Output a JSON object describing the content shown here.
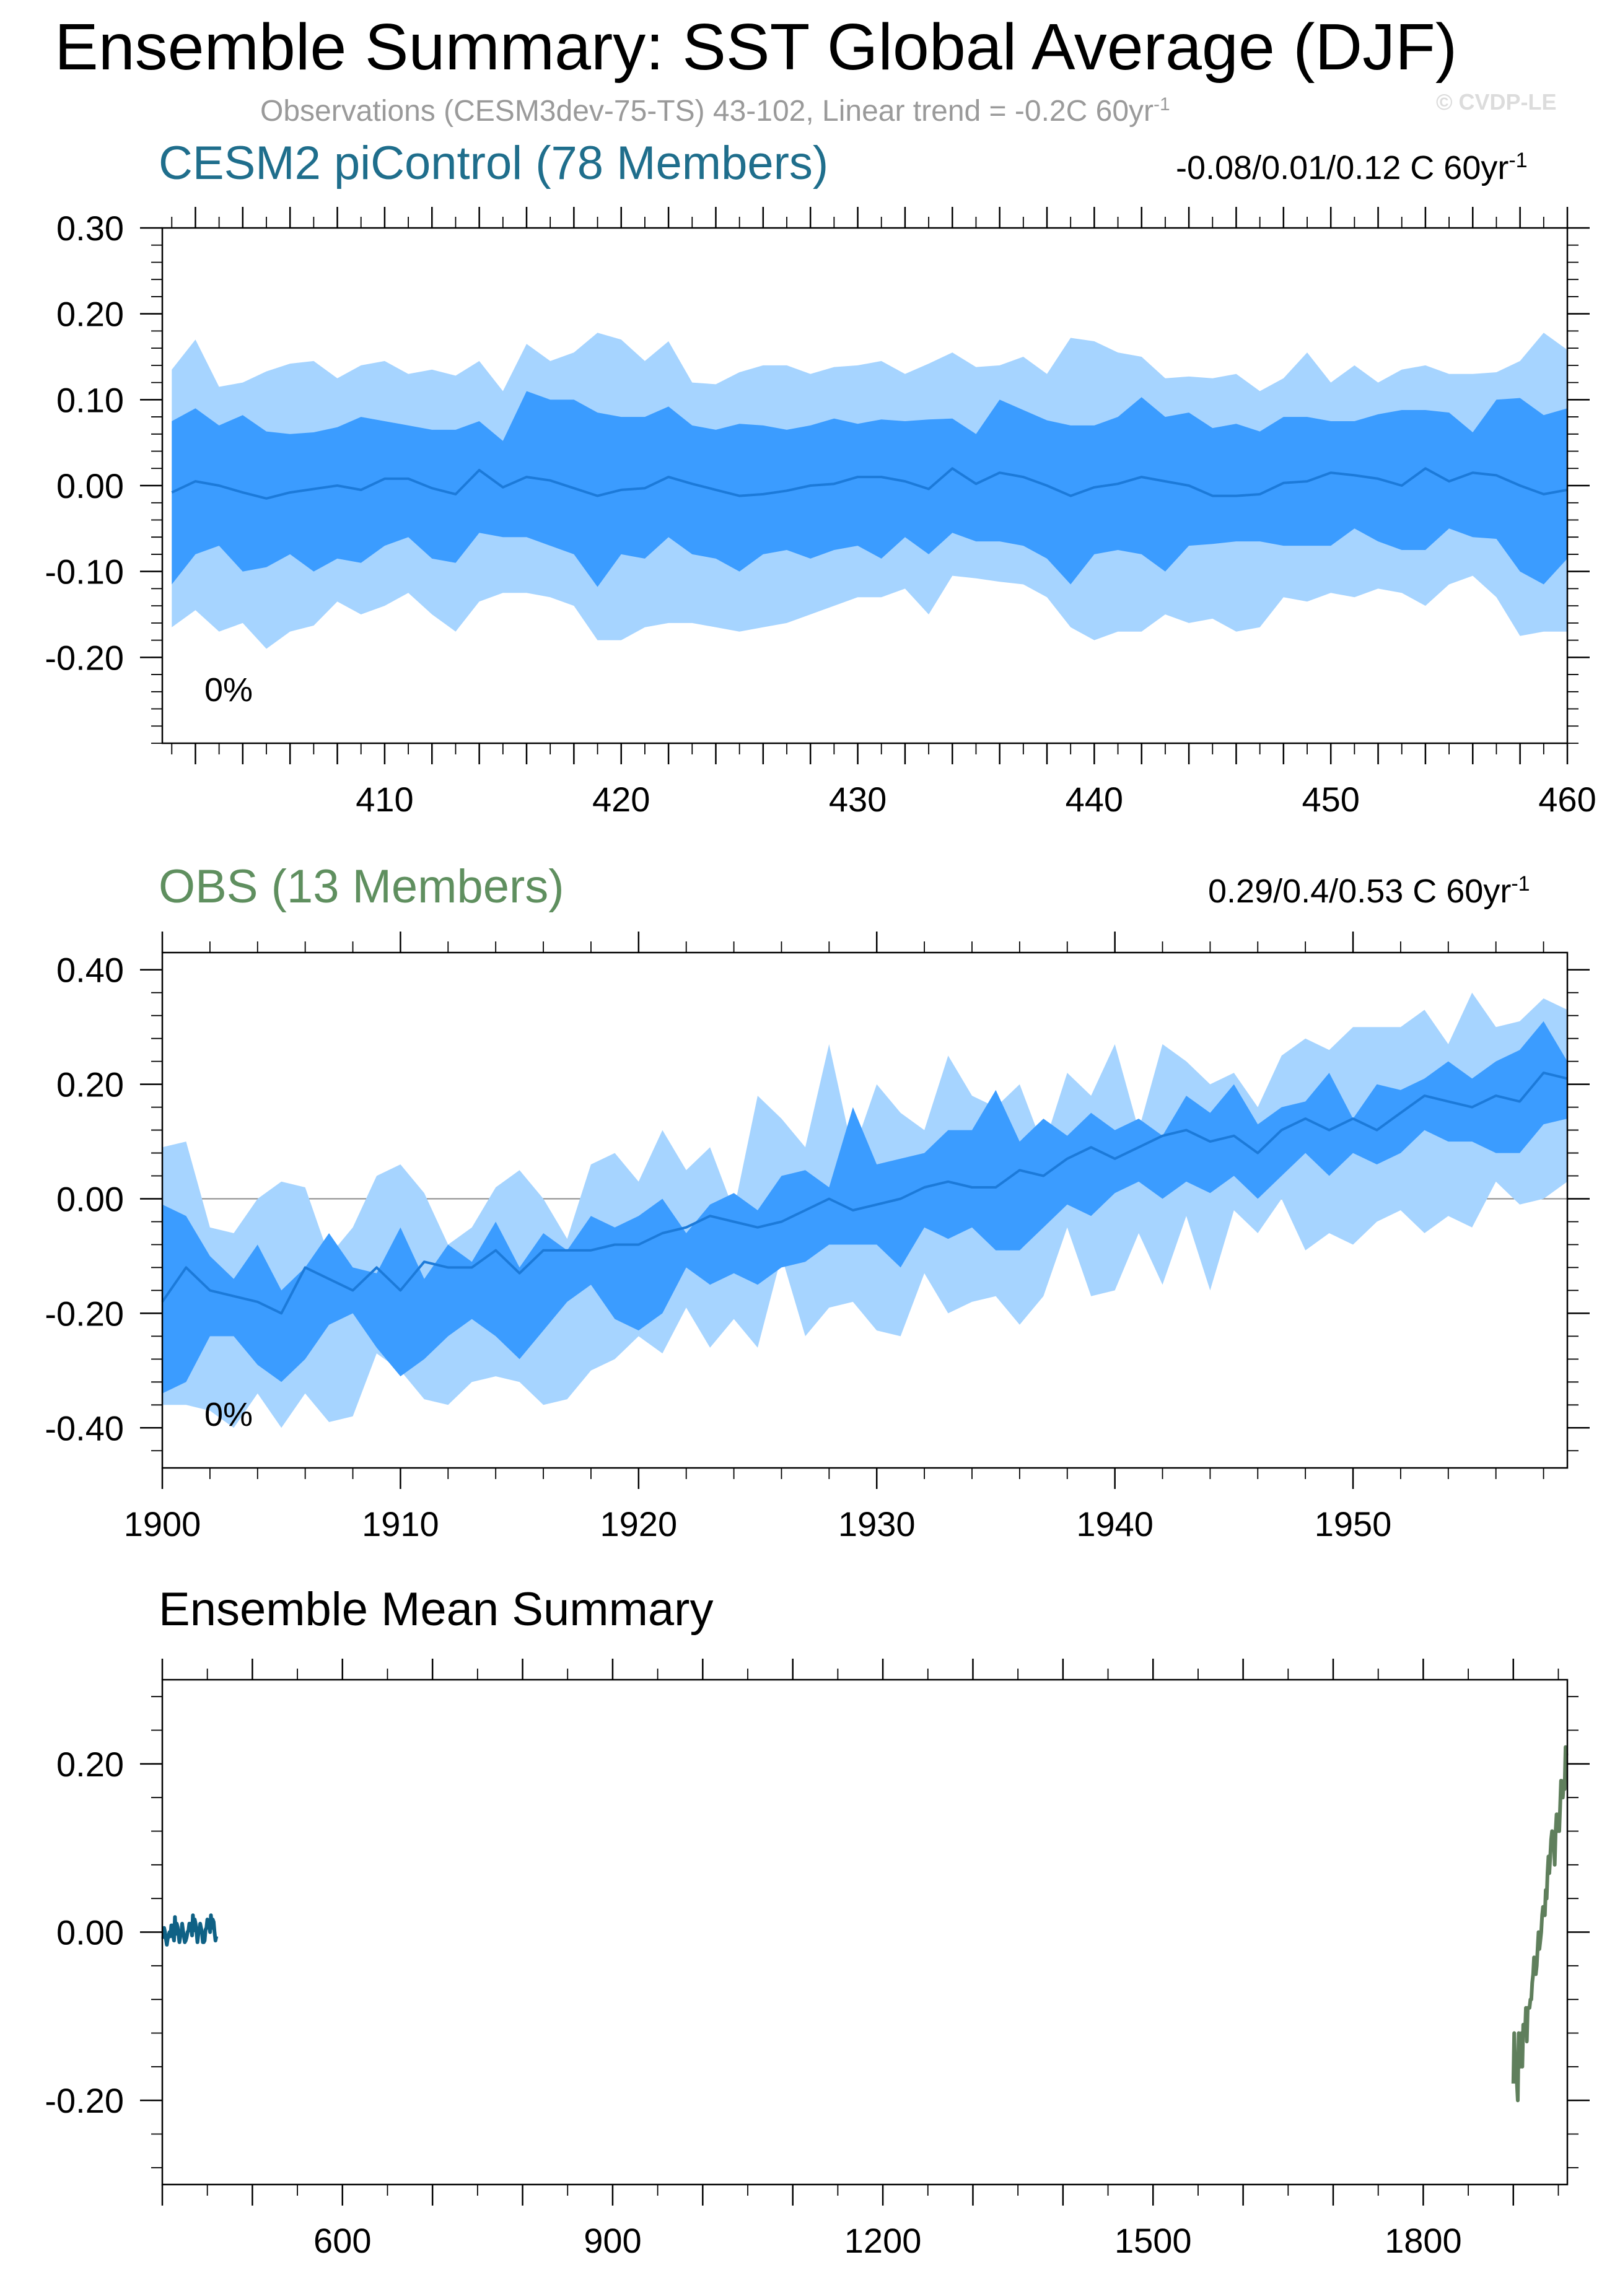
{
  "header": {
    "title": "Ensemble Summary: SST Global Average (DJF)",
    "subtitle": "Observations (CESM3dev-75-TS) 43-102, Linear trend = -0.2C 60yr",
    "subtitle_sup": "-1",
    "credit": "© CVDP-LE"
  },
  "colors": {
    "band_outer": "#a6d4ff",
    "band_inner": "#3b9cff",
    "mean_line": "#1c7ad9",
    "model_line": "#0f6185",
    "obs_line": "#5f7f5c",
    "model_title": "#1f6e8c",
    "obs_title": "#5f8f5f"
  },
  "panels": {
    "model": {
      "title": "CESM2 piControl (78 Members)",
      "range": "-0.08/0.01/0.12 C 60yr",
      "range_sup": "-1",
      "pct": "0%"
    },
    "obs": {
      "title": "OBS (13 Members)",
      "range": "0.29/0.4/0.53 C 60yr",
      "range_sup": "-1",
      "pct": "0%"
    },
    "summary": {
      "title": "Ensemble Mean Summary"
    }
  },
  "chart_data": [
    {
      "type": "area",
      "title": "CESM2 piControl (78 Members)",
      "x": [
        401,
        402,
        403,
        404,
        405,
        406,
        407,
        408,
        409,
        410,
        411,
        412,
        413,
        414,
        415,
        416,
        417,
        418,
        419,
        420,
        421,
        422,
        423,
        424,
        425,
        426,
        427,
        428,
        429,
        430,
        431,
        432,
        433,
        434,
        435,
        436,
        437,
        438,
        439,
        440,
        441,
        442,
        443,
        444,
        445,
        446,
        447,
        448,
        449,
        450,
        451,
        452,
        453,
        454,
        455,
        456,
        457,
        458,
        459,
        460
      ],
      "xlim": [
        400.6,
        460
      ],
      "ylim": [
        -0.3,
        0.3
      ],
      "xticks": [
        410,
        420,
        430,
        440,
        450,
        460
      ],
      "yticks": [
        -0.2,
        -0.1,
        0.0,
        0.1,
        0.2,
        0.3
      ],
      "ytick_labels": [
        "-0.20",
        "-0.10",
        "0.00",
        "0.10",
        "0.20",
        "0.30"
      ],
      "series": [
        {
          "role": "outer_upper",
          "values": [
            0.135,
            0.17,
            0.115,
            0.12,
            0.133,
            0.142,
            0.145,
            0.125,
            0.14,
            0.145,
            0.13,
            0.135,
            0.128,
            0.145,
            0.11,
            0.165,
            0.145,
            0.155,
            0.178,
            0.17,
            0.145,
            0.168,
            0.12,
            0.118,
            0.132,
            0.14,
            0.14,
            0.13,
            0.138,
            0.14,
            0.145,
            0.13,
            0.142,
            0.155,
            0.138,
            0.14,
            0.15,
            0.13,
            0.172,
            0.168,
            0.155,
            0.15,
            0.125,
            0.127,
            0.125,
            0.13,
            0.11,
            0.125,
            0.155,
            0.12,
            0.14,
            0.12,
            0.135,
            0.14,
            0.13,
            0.13,
            0.132,
            0.145,
            0.178,
            0.158
          ]
        },
        {
          "role": "inner_upper",
          "values": [
            0.075,
            0.09,
            0.07,
            0.082,
            0.063,
            0.06,
            0.062,
            0.068,
            0.08,
            0.075,
            0.07,
            0.065,
            0.065,
            0.075,
            0.052,
            0.11,
            0.1,
            0.1,
            0.085,
            0.08,
            0.08,
            0.092,
            0.07,
            0.065,
            0.072,
            0.07,
            0.065,
            0.07,
            0.078,
            0.072,
            0.077,
            0.075,
            0.077,
            0.078,
            0.06,
            0.1,
            0.088,
            0.076,
            0.07,
            0.07,
            0.08,
            0.103,
            0.08,
            0.085,
            0.067,
            0.072,
            0.063,
            0.08,
            0.08,
            0.075,
            0.075,
            0.083,
            0.088,
            0.088,
            0.085,
            0.062,
            0.1,
            0.102,
            0.082,
            0.09
          ]
        },
        {
          "role": "mean",
          "values": [
            -0.008,
            0.005,
            0.0,
            -0.008,
            -0.015,
            -0.008,
            -0.004,
            0.0,
            -0.005,
            0.008,
            0.008,
            -0.003,
            -0.01,
            0.018,
            -0.002,
            0.01,
            0.006,
            -0.003,
            -0.012,
            -0.005,
            -0.003,
            0.01,
            0.002,
            -0.005,
            -0.012,
            -0.01,
            -0.006,
            0.0,
            0.002,
            0.01,
            0.01,
            0.005,
            -0.004,
            0.02,
            0.002,
            0.015,
            0.01,
            0.0,
            -0.012,
            -0.002,
            0.002,
            0.01,
            0.005,
            0.0,
            -0.012,
            -0.012,
            -0.01,
            0.003,
            0.005,
            0.015,
            0.012,
            0.008,
            0.0,
            0.02,
            0.005,
            0.015,
            0.012,
            0.0,
            -0.01,
            -0.005
          ]
        },
        {
          "role": "inner_lower",
          "values": [
            -0.115,
            -0.08,
            -0.07,
            -0.1,
            -0.095,
            -0.08,
            -0.1,
            -0.085,
            -0.09,
            -0.07,
            -0.06,
            -0.085,
            -0.09,
            -0.055,
            -0.06,
            -0.06,
            -0.07,
            -0.08,
            -0.118,
            -0.08,
            -0.085,
            -0.06,
            -0.08,
            -0.085,
            -0.1,
            -0.08,
            -0.075,
            -0.085,
            -0.075,
            -0.07,
            -0.085,
            -0.06,
            -0.08,
            -0.055,
            -0.065,
            -0.065,
            -0.07,
            -0.085,
            -0.115,
            -0.08,
            -0.075,
            -0.08,
            -0.1,
            -0.07,
            -0.068,
            -0.065,
            -0.065,
            -0.07,
            -0.07,
            -0.07,
            -0.05,
            -0.065,
            -0.075,
            -0.075,
            -0.05,
            -0.06,
            -0.062,
            -0.1,
            -0.115,
            -0.085
          ]
        },
        {
          "role": "outer_lower",
          "values": [
            -0.165,
            -0.145,
            -0.17,
            -0.16,
            -0.19,
            -0.17,
            -0.163,
            -0.135,
            -0.15,
            -0.14,
            -0.125,
            -0.15,
            -0.17,
            -0.135,
            -0.125,
            -0.125,
            -0.13,
            -0.14,
            -0.18,
            -0.18,
            -0.165,
            -0.16,
            -0.16,
            -0.165,
            -0.17,
            -0.165,
            -0.16,
            -0.15,
            -0.14,
            -0.13,
            -0.13,
            -0.12,
            -0.15,
            -0.105,
            -0.108,
            -0.112,
            -0.115,
            -0.13,
            -0.165,
            -0.18,
            -0.17,
            -0.17,
            -0.15,
            -0.16,
            -0.155,
            -0.17,
            -0.165,
            -0.13,
            -0.135,
            -0.125,
            -0.13,
            -0.12,
            -0.125,
            -0.14,
            -0.115,
            -0.105,
            -0.13,
            -0.175,
            -0.17,
            -0.17
          ]
        }
      ]
    },
    {
      "type": "area",
      "title": "OBS (13 Members)",
      "x": [
        1900,
        1901,
        1902,
        1903,
        1904,
        1905,
        1906,
        1907,
        1908,
        1909,
        1910,
        1911,
        1912,
        1913,
        1914,
        1915,
        1916,
        1917,
        1918,
        1919,
        1920,
        1921,
        1922,
        1923,
        1924,
        1925,
        1926,
        1927,
        1928,
        1929,
        1930,
        1931,
        1932,
        1933,
        1934,
        1935,
        1936,
        1937,
        1938,
        1939,
        1940,
        1941,
        1942,
        1943,
        1944,
        1945,
        1946,
        1947,
        1948,
        1949,
        1950,
        1951,
        1952,
        1953,
        1954,
        1955,
        1956,
        1957,
        1958,
        1959
      ],
      "xlim": [
        1900,
        1959
      ],
      "ylim": [
        -0.47,
        0.43
      ],
      "xticks": [
        1900,
        1910,
        1920,
        1930,
        1940,
        1950
      ],
      "yticks": [
        -0.4,
        -0.2,
        0.0,
        0.2,
        0.4
      ],
      "ytick_labels": [
        "-0.40",
        "-0.20",
        "0.00",
        "0.20",
        "0.40"
      ],
      "series": [
        {
          "role": "outer_upper",
          "values": [
            0.09,
            0.1,
            -0.05,
            -0.06,
            0.0,
            0.03,
            0.02,
            -0.1,
            -0.05,
            0.04,
            0.06,
            0.01,
            -0.08,
            -0.05,
            0.02,
            0.05,
            0.0,
            -0.07,
            0.06,
            0.08,
            0.03,
            0.12,
            0.05,
            0.09,
            -0.02,
            0.18,
            0.14,
            0.09,
            0.27,
            0.08,
            0.2,
            0.15,
            0.12,
            0.25,
            0.18,
            0.16,
            0.2,
            0.09,
            0.22,
            0.18,
            0.27,
            0.12,
            0.27,
            0.24,
            0.2,
            0.22,
            0.16,
            0.25,
            0.28,
            0.26,
            0.3,
            0.3,
            0.3,
            0.33,
            0.27,
            0.36,
            0.3,
            0.31,
            0.35,
            0.33
          ]
        },
        {
          "role": "inner_upper",
          "values": [
            -0.01,
            -0.03,
            -0.1,
            -0.14,
            -0.08,
            -0.16,
            -0.12,
            -0.06,
            -0.12,
            -0.13,
            -0.05,
            -0.14,
            -0.08,
            -0.11,
            -0.04,
            -0.12,
            -0.06,
            -0.09,
            -0.03,
            -0.05,
            -0.03,
            0.0,
            -0.06,
            -0.01,
            0.01,
            -0.02,
            0.04,
            0.05,
            0.02,
            0.16,
            0.06,
            0.07,
            0.08,
            0.12,
            0.12,
            0.19,
            0.1,
            0.14,
            0.11,
            0.15,
            0.12,
            0.14,
            0.11,
            0.18,
            0.15,
            0.2,
            0.13,
            0.16,
            0.17,
            0.22,
            0.14,
            0.2,
            0.19,
            0.21,
            0.24,
            0.21,
            0.24,
            0.26,
            0.31,
            0.24
          ]
        },
        {
          "role": "mean",
          "values": [
            -0.18,
            -0.12,
            -0.16,
            -0.17,
            -0.18,
            -0.2,
            -0.12,
            -0.14,
            -0.16,
            -0.12,
            -0.16,
            -0.11,
            -0.12,
            -0.12,
            -0.09,
            -0.13,
            -0.09,
            -0.09,
            -0.09,
            -0.08,
            -0.08,
            -0.06,
            -0.05,
            -0.03,
            -0.04,
            -0.05,
            -0.04,
            -0.02,
            0.0,
            -0.02,
            -0.01,
            0.0,
            0.02,
            0.03,
            0.02,
            0.02,
            0.05,
            0.04,
            0.07,
            0.09,
            0.07,
            0.09,
            0.11,
            0.12,
            0.1,
            0.11,
            0.08,
            0.12,
            0.14,
            0.12,
            0.14,
            0.12,
            0.15,
            0.18,
            0.17,
            0.16,
            0.18,
            0.17,
            0.22,
            0.21
          ]
        },
        {
          "role": "inner_lower",
          "values": [
            -0.34,
            -0.32,
            -0.24,
            -0.24,
            -0.29,
            -0.32,
            -0.28,
            -0.22,
            -0.2,
            -0.26,
            -0.31,
            -0.28,
            -0.24,
            -0.21,
            -0.24,
            -0.28,
            -0.23,
            -0.18,
            -0.15,
            -0.21,
            -0.23,
            -0.2,
            -0.12,
            -0.15,
            -0.13,
            -0.15,
            -0.12,
            -0.11,
            -0.08,
            -0.08,
            -0.08,
            -0.12,
            -0.05,
            -0.07,
            -0.05,
            -0.09,
            -0.09,
            -0.05,
            -0.01,
            -0.03,
            0.01,
            0.03,
            0.0,
            0.03,
            0.01,
            0.04,
            0.0,
            0.04,
            0.08,
            0.04,
            0.08,
            0.06,
            0.08,
            0.12,
            0.1,
            0.1,
            0.08,
            0.08,
            0.13,
            0.14
          ]
        },
        {
          "role": "outer_lower",
          "values": [
            -0.36,
            -0.36,
            -0.37,
            -0.4,
            -0.34,
            -0.4,
            -0.34,
            -0.39,
            -0.38,
            -0.27,
            -0.3,
            -0.35,
            -0.36,
            -0.32,
            -0.31,
            -0.32,
            -0.36,
            -0.35,
            -0.3,
            -0.28,
            -0.24,
            -0.27,
            -0.19,
            -0.26,
            -0.21,
            -0.26,
            -0.1,
            -0.24,
            -0.19,
            -0.18,
            -0.23,
            -0.24,
            -0.13,
            -0.2,
            -0.18,
            -0.17,
            -0.22,
            -0.17,
            -0.05,
            -0.17,
            -0.16,
            -0.06,
            -0.15,
            -0.03,
            -0.16,
            -0.02,
            -0.06,
            0.0,
            -0.09,
            -0.06,
            -0.08,
            -0.04,
            -0.02,
            -0.06,
            -0.03,
            -0.05,
            0.03,
            -0.01,
            0.0,
            0.03
          ]
        }
      ]
    },
    {
      "type": "line",
      "title": "Ensemble Mean Summary",
      "xlim": [
        400,
        1960
      ],
      "ylim": [
        -0.3,
        0.3
      ],
      "xticks": [
        600,
        900,
        1200,
        1500,
        1800
      ],
      "yticks": [
        -0.2,
        0.0,
        0.2
      ],
      "ytick_labels": [
        "-0.20",
        "0.00",
        "0.20"
      ],
      "series": [
        {
          "name": "CESM2 piControl",
          "color": "#0f6185",
          "x_start": 401,
          "values": [
            -0.008,
            0.005,
            0.0,
            -0.008,
            -0.015,
            -0.008,
            -0.004,
            0.0,
            -0.005,
            0.008,
            0.008,
            -0.003,
            -0.01,
            0.018,
            -0.002,
            0.01,
            0.006,
            -0.003,
            -0.012,
            -0.005,
            -0.003,
            0.01,
            0.002,
            -0.005,
            -0.012,
            -0.01,
            -0.006,
            0.0,
            0.002,
            0.01,
            0.01,
            0.005,
            -0.004,
            0.02,
            0.002,
            0.015,
            0.01,
            0.0,
            -0.012,
            -0.002,
            0.002,
            0.01,
            0.005,
            0.0,
            -0.012,
            -0.012,
            -0.01,
            0.003,
            0.005,
            0.015,
            0.012,
            0.008,
            0.0,
            0.02,
            0.005,
            0.015,
            0.012,
            0.0,
            -0.01,
            -0.005
          ]
        },
        {
          "name": "OBS",
          "color": "#5f7f5c",
          "x_start": 1900,
          "values": [
            -0.18,
            -0.12,
            -0.16,
            -0.17,
            -0.18,
            -0.2,
            -0.12,
            -0.14,
            -0.16,
            -0.12,
            -0.16,
            -0.11,
            -0.12,
            -0.12,
            -0.09,
            -0.13,
            -0.09,
            -0.09,
            -0.09,
            -0.08,
            -0.08,
            -0.06,
            -0.05,
            -0.03,
            -0.04,
            -0.05,
            -0.04,
            -0.02,
            0.0,
            -0.02,
            -0.01,
            0.0,
            0.02,
            0.03,
            0.02,
            0.02,
            0.05,
            0.04,
            0.07,
            0.09,
            0.07,
            0.09,
            0.11,
            0.12,
            0.1,
            0.11,
            0.08,
            0.12,
            0.14,
            0.12,
            0.14,
            0.12,
            0.15,
            0.18,
            0.17,
            0.16,
            0.18,
            0.17,
            0.22,
            0.21
          ]
        }
      ]
    }
  ]
}
